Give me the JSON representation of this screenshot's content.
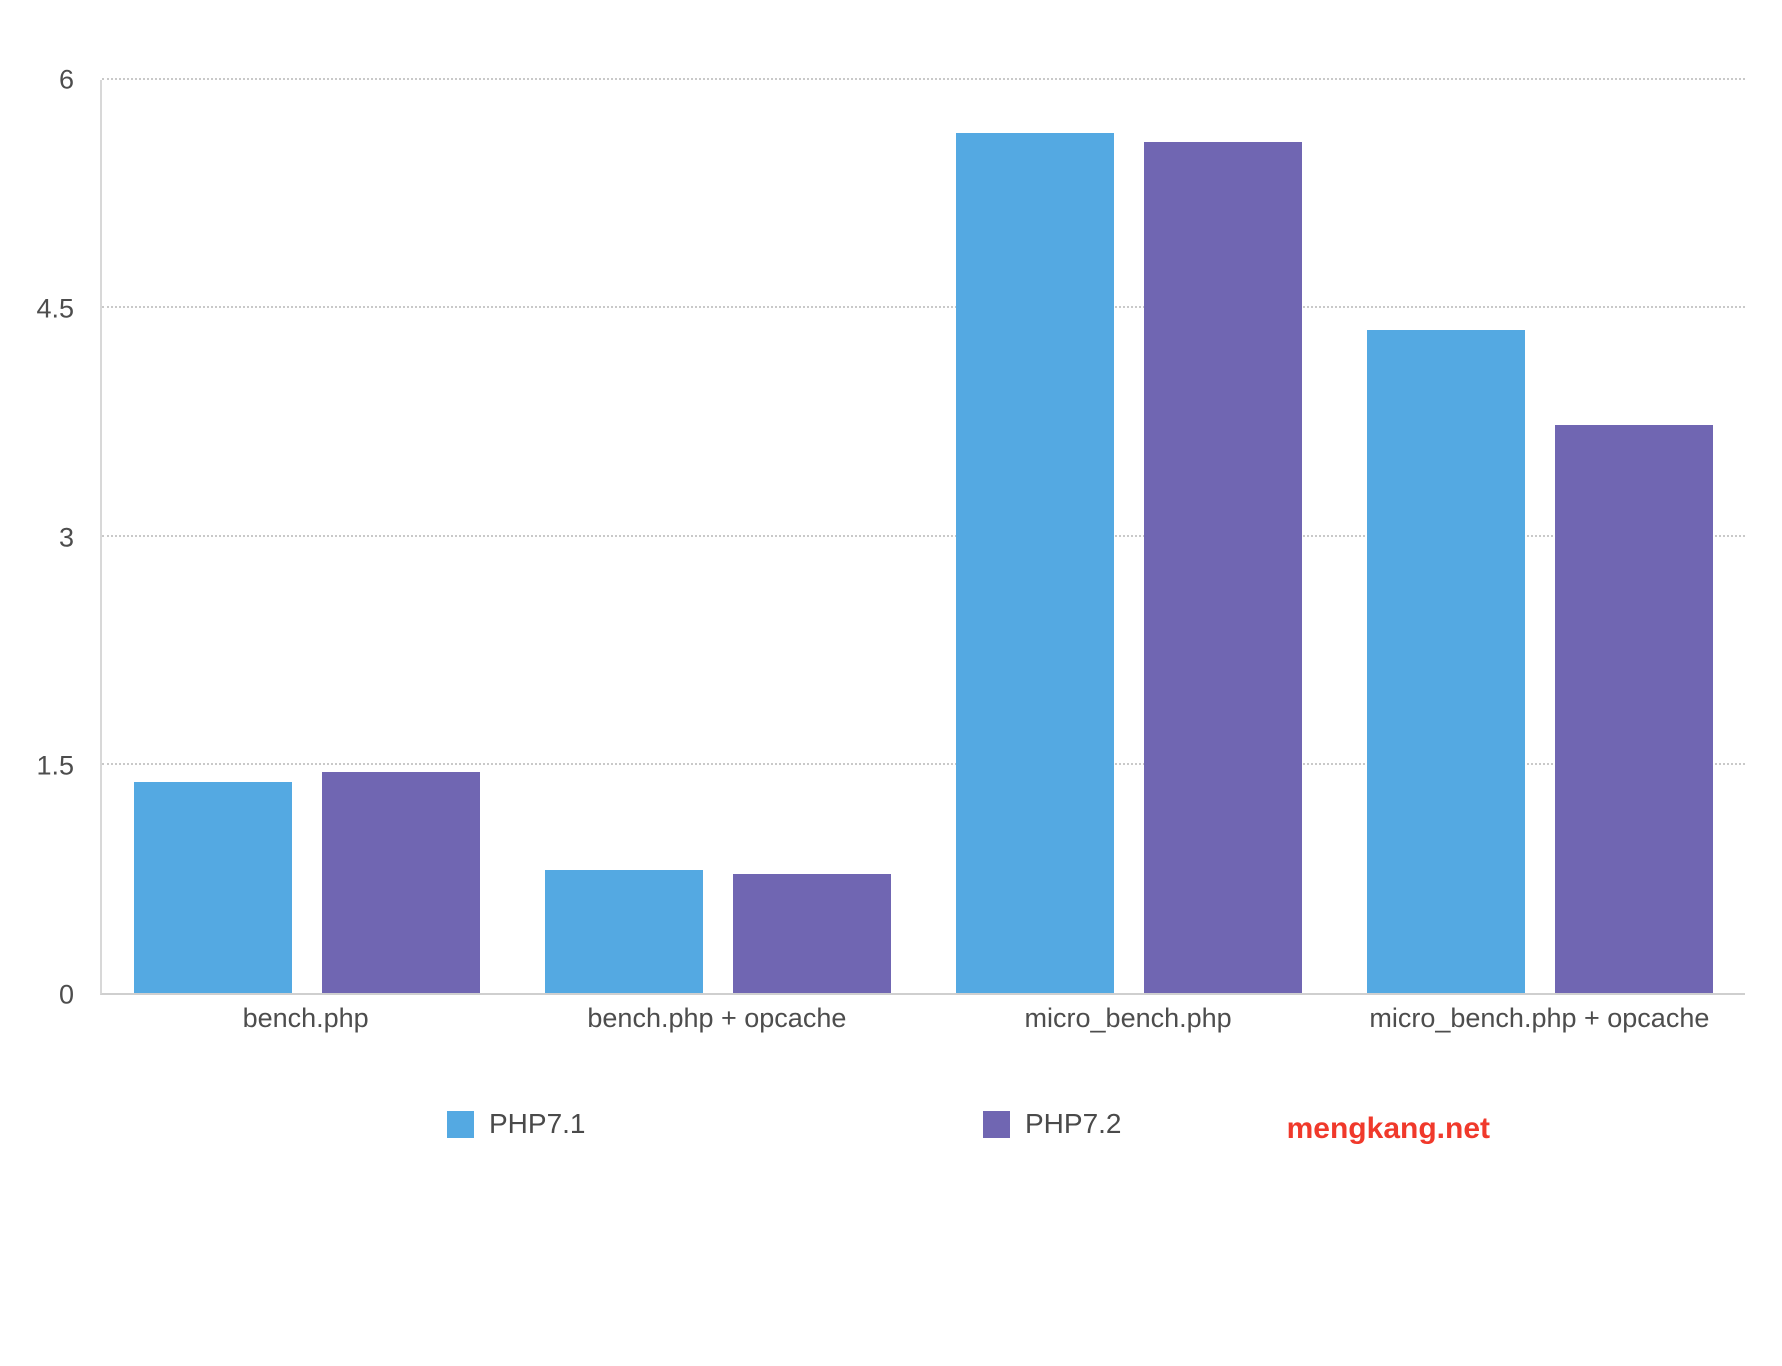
{
  "chart_data": {
    "type": "bar",
    "title": "",
    "categories": [
      "bench.php",
      "bench.php + opcache",
      "micro_bench.php",
      "micro_bench.php + opcache"
    ],
    "series": [
      {
        "name": "PHP7.1",
        "color": "#54a9e2",
        "values": [
          1.39,
          0.81,
          5.65,
          4.36
        ]
      },
      {
        "name": "PHP7.2",
        "color": "#7066b2",
        "values": [
          1.45,
          0.78,
          5.59,
          3.73
        ]
      }
    ],
    "ylim": [
      0,
      6
    ],
    "yticks": [
      "0",
      "1.5",
      "3",
      "4.5",
      "6"
    ],
    "grid": "horizontal-dotted",
    "legend_position": "bottom"
  },
  "legend": {
    "items": [
      {
        "label": "PHP7.1"
      },
      {
        "label": "PHP7.2"
      }
    ]
  },
  "watermark": "mengkang.net",
  "colors": {
    "series1": "#54a9e2",
    "series2": "#7066b2",
    "watermark": "#f0392b",
    "axis_text": "#4d4d4d",
    "gridline": "#c9c9c9"
  }
}
